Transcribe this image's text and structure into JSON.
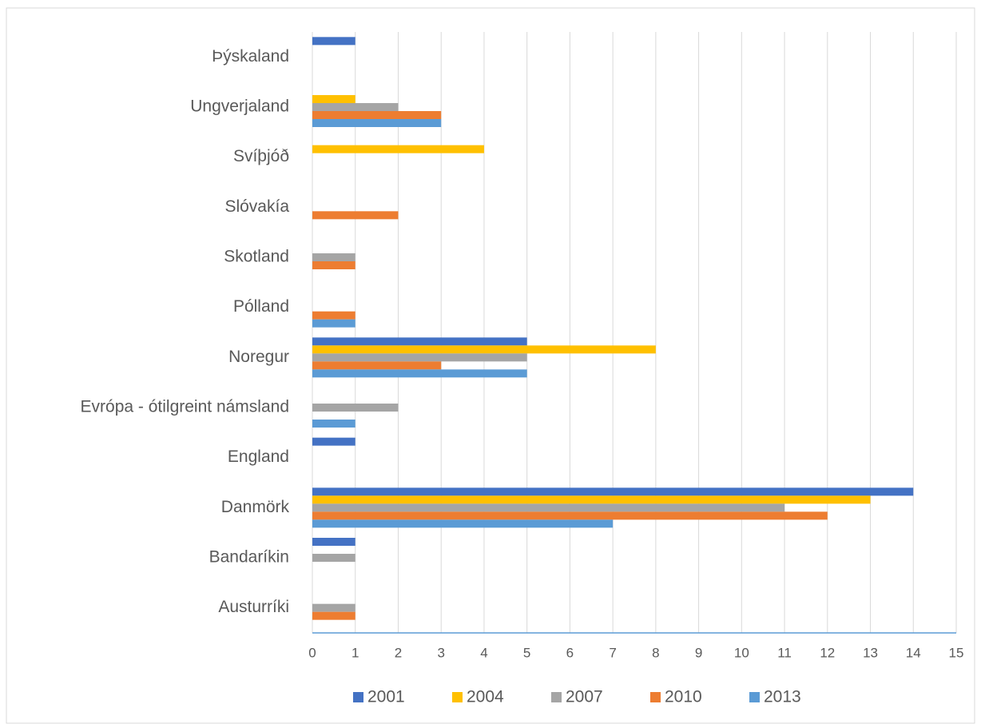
{
  "chart_data": {
    "type": "bar",
    "orientation": "horizontal",
    "categories": [
      "Austurríki",
      "Bandaríkin",
      "Danmörk",
      "England",
      "Evrópa - ótilgreint námsland",
      "Noregur",
      "Pólland",
      "Skotland",
      "Slóvakía",
      "Svíþjóð",
      "Ungverjaland",
      "Þýskaland"
    ],
    "series": [
      {
        "name": "2001",
        "color": "#4472c4",
        "values": [
          null,
          1,
          14,
          1,
          null,
          5,
          null,
          null,
          null,
          null,
          null,
          1
        ]
      },
      {
        "name": "2004",
        "color": "#ffc000",
        "values": [
          null,
          null,
          13,
          null,
          null,
          8,
          null,
          null,
          null,
          4,
          1,
          null
        ]
      },
      {
        "name": "2007",
        "color": "#a5a5a5",
        "values": [
          1,
          1,
          11,
          null,
          2,
          5,
          null,
          1,
          null,
          null,
          2,
          null
        ]
      },
      {
        "name": "2010",
        "color": "#ed7d31",
        "values": [
          1,
          null,
          12,
          null,
          null,
          3,
          1,
          1,
          2,
          null,
          3,
          null
        ]
      },
      {
        "name": "2013",
        "color": "#5b9bd5",
        "values": [
          null,
          null,
          7,
          null,
          1,
          5,
          1,
          null,
          null,
          null,
          3,
          null
        ]
      }
    ],
    "xlim": [
      0,
      15
    ],
    "xticks": [
      0,
      1,
      2,
      3,
      4,
      5,
      6,
      7,
      8,
      9,
      10,
      11,
      12,
      13,
      14,
      15
    ],
    "grid": true,
    "legend": "bottom"
  }
}
